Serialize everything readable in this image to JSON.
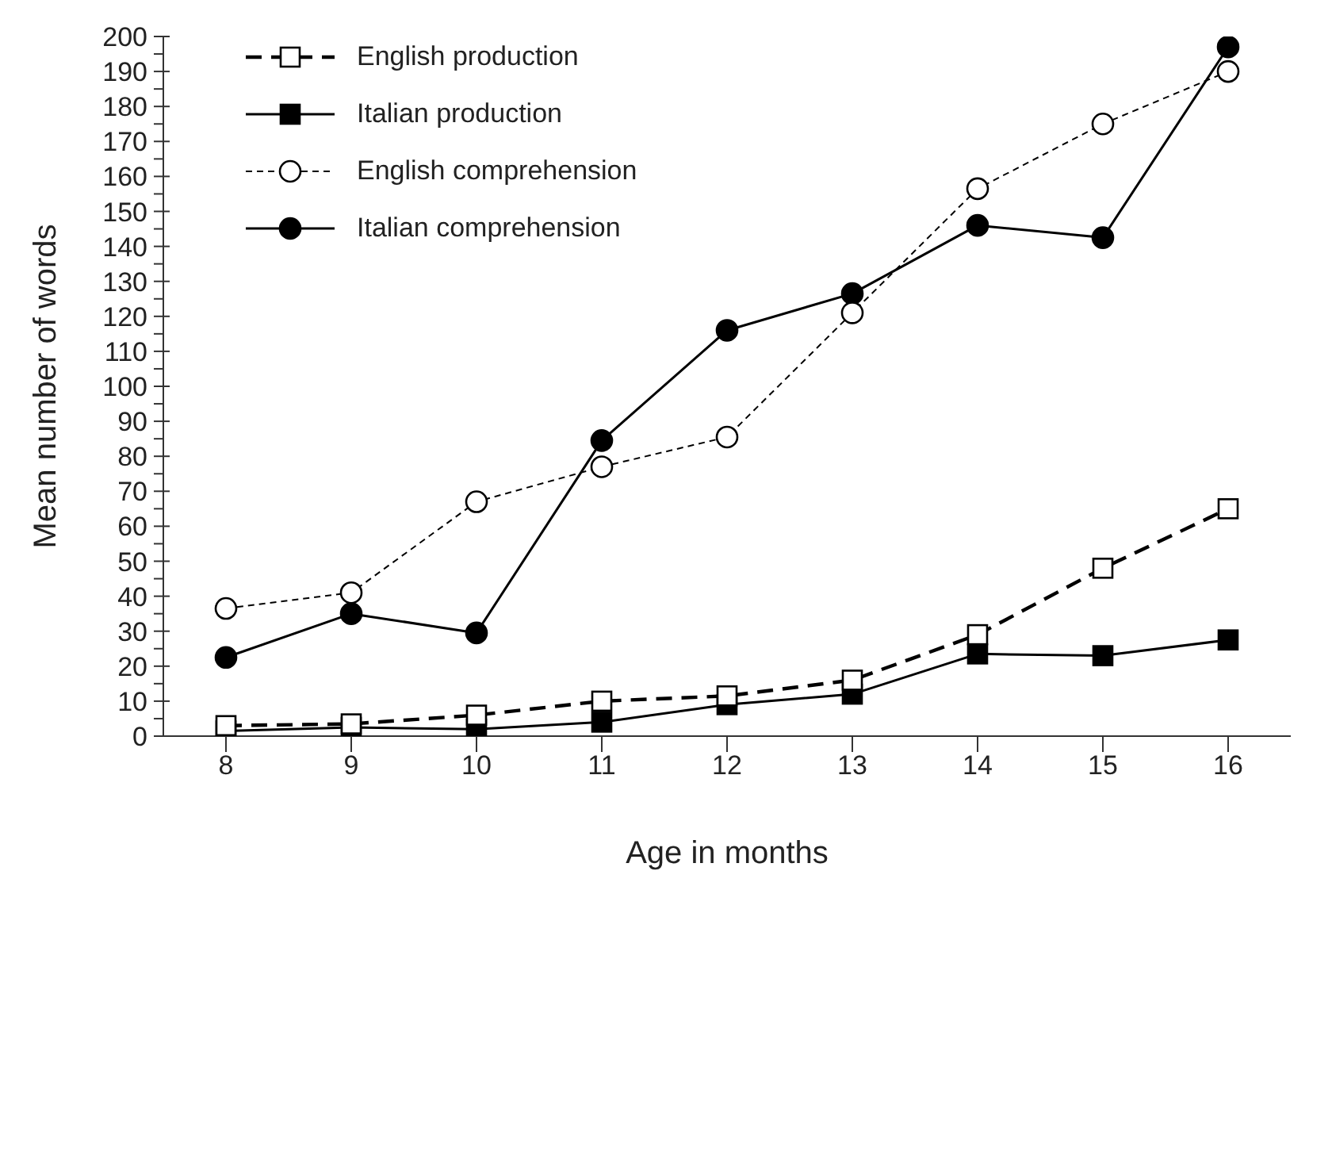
{
  "chart_data": {
    "type": "line",
    "xlabel": "Age in months",
    "ylabel": "Mean number of words",
    "x": [
      8,
      9,
      10,
      11,
      12,
      13,
      14,
      15,
      16
    ],
    "xlim": [
      7.5,
      16.5
    ],
    "xticks": [
      8,
      9,
      10,
      11,
      12,
      13,
      14,
      15,
      16
    ],
    "ylim": [
      0,
      200
    ],
    "yticks": [
      0,
      {
        "value": 5,
        "label": null
      },
      10,
      {
        "value": 15,
        "label": null
      },
      20,
      {
        "value": 25,
        "label": null
      },
      30,
      {
        "value": 35,
        "label": null
      },
      40,
      {
        "value": 45,
        "label": null
      },
      50,
      {
        "value": 55,
        "label": null
      },
      60,
      {
        "value": 65,
        "label": null
      },
      70,
      {
        "value": 75,
        "label": null
      },
      80,
      {
        "value": 85,
        "label": null
      },
      90,
      {
        "value": 95,
        "label": null
      },
      100,
      {
        "value": 105,
        "label": null
      },
      110,
      {
        "value": 115,
        "label": null
      },
      120,
      {
        "value": 125,
        "label": null
      },
      130,
      {
        "value": 135,
        "label": null
      },
      140,
      {
        "value": 145,
        "label": null
      },
      150,
      {
        "value": 155,
        "label": null
      },
      160,
      {
        "value": 165,
        "label": null
      },
      170,
      {
        "value": 175,
        "label": null
      },
      180,
      {
        "value": 185,
        "label": null
      },
      190,
      {
        "value": 195,
        "label": null
      },
      200
    ],
    "grid": false,
    "legend": "top left",
    "series": [
      {
        "name": "English production",
        "color": "#000000",
        "marker": "square",
        "line_style": "dashed",
        "values": [
          3,
          3.5,
          6,
          10,
          11.5,
          16,
          29,
          48,
          65
        ]
      },
      {
        "name": "Italian production",
        "color": "#000000",
        "marker": "square",
        "line_style": "solid",
        "values": [
          1.5,
          2.5,
          2,
          4,
          9,
          12,
          23.5,
          23,
          27.5
        ]
      },
      {
        "name": "English comprehension",
        "color": "#000000",
        "marker": "circle",
        "line_style": "dotted",
        "values": [
          36.5,
          41,
          67,
          77,
          85.5,
          121,
          156.5,
          175,
          190
        ]
      },
      {
        "name": "Italian comprehension",
        "color": "#000000",
        "marker": "circle",
        "line_style": "solid",
        "values": [
          22.5,
          35,
          29.5,
          84.5,
          116,
          126.5,
          146,
          142.5,
          197
        ]
      }
    ]
  }
}
